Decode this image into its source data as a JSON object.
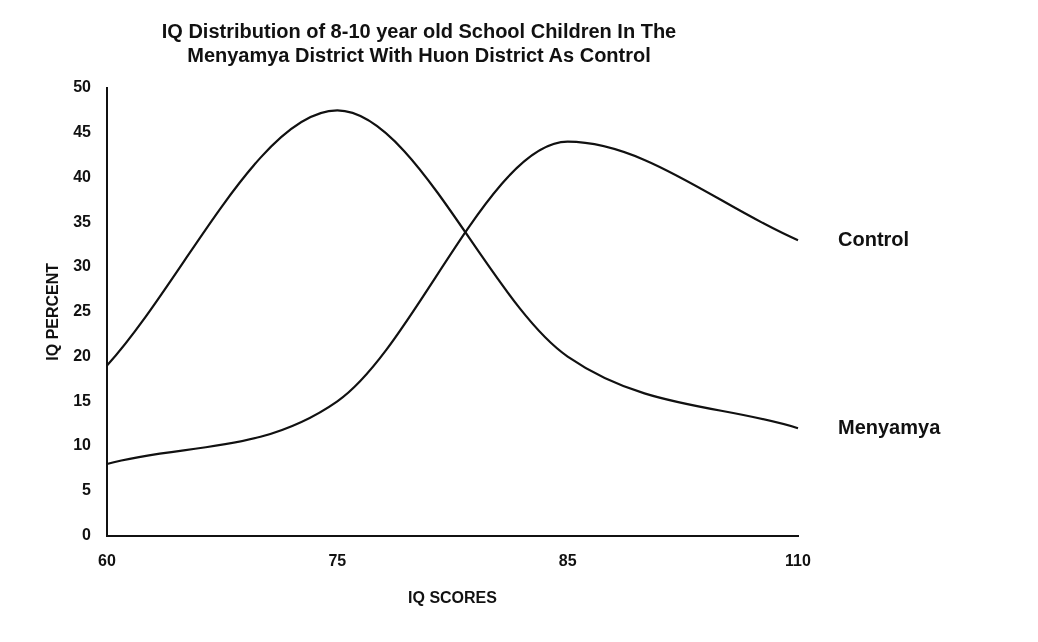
{
  "chart_data": {
    "type": "line",
    "title": "IQ Distribution of 8-10 year old School Children In The\nMenyamya District With Huon District As Control",
    "xlabel": "IQ SCORES",
    "ylabel": "IQ PERCENT",
    "categories": [
      "60",
      "75",
      "85",
      "110"
    ],
    "series": [
      {
        "name": "Menyamya",
        "color": "#111111",
        "values": [
          19,
          47.5,
          20,
          12
        ]
      },
      {
        "name": "Control",
        "color": "#111111",
        "values": [
          8,
          15,
          44,
          33
        ]
      }
    ],
    "ylim": [
      0,
      50
    ],
    "yticks": [
      0,
      5,
      10,
      15,
      20,
      25,
      30,
      35,
      40,
      45,
      50
    ],
    "grid": false,
    "legend": false,
    "marker": "none",
    "line_style": "solid"
  }
}
